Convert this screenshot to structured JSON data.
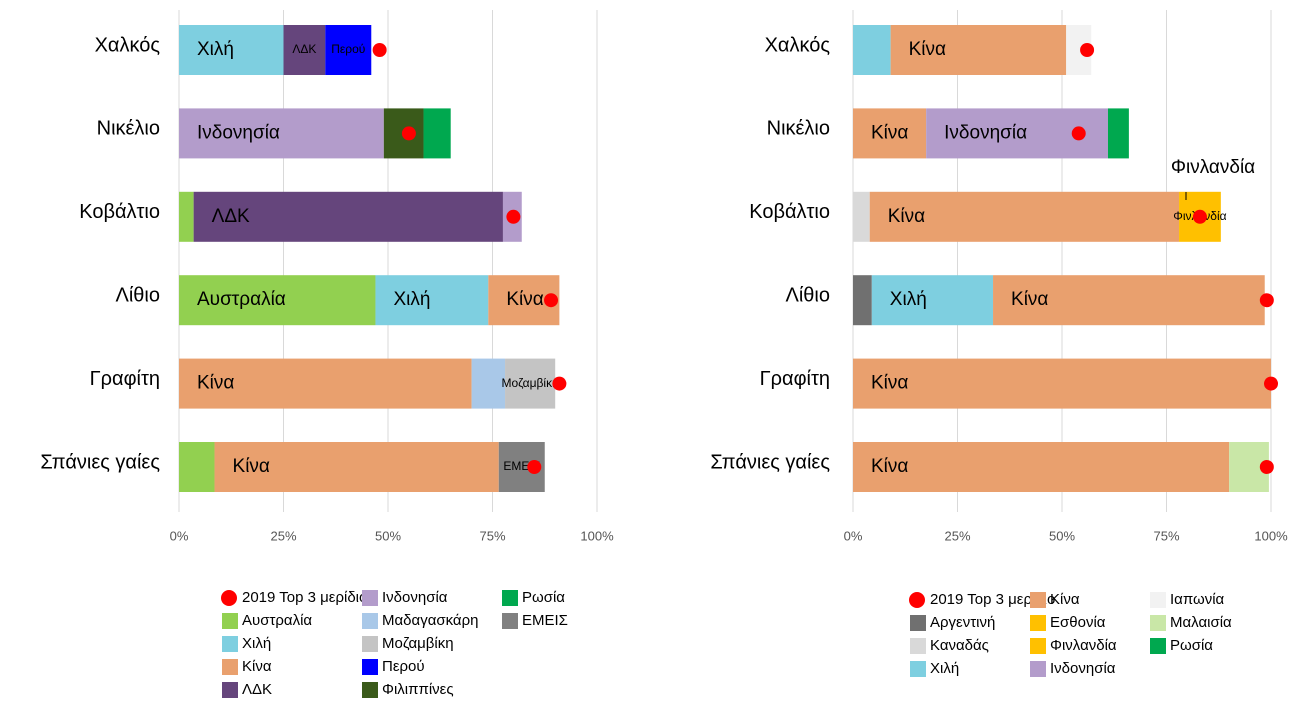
{
  "chart_data": [
    {
      "type": "bar",
      "orientation": "horizontal",
      "stacked": true,
      "categories": [
        "Χαλκός",
        "Νικέλιο",
        "Κοβάλτιο",
        "Λίθιο",
        "Γραφίτη",
        "Σπάνιες γαίες"
      ],
      "xlim": [
        0,
        100
      ],
      "xticks": [
        {
          "value": 0,
          "label": "0%"
        },
        {
          "value": 25,
          "label": "25%"
        },
        {
          "value": 50,
          "label": "50%"
        },
        {
          "value": 75,
          "label": "75%"
        },
        {
          "value": 100,
          "label": "100%"
        }
      ],
      "grid": true,
      "marker_series": {
        "name": "2019 Top 3 μερίδιο",
        "color": "#ff0000",
        "values": [
          48,
          55,
          80,
          89,
          91,
          85
        ]
      },
      "series": [
        {
          "name": "Αυστραλία",
          "color": "#92d050",
          "values": [
            null,
            null,
            3.5,
            47,
            null,
            8.5
          ]
        },
        {
          "name": "Χιλή",
          "color": "#7ecfe0",
          "values": [
            25,
            null,
            null,
            27,
            null,
            null
          ]
        },
        {
          "name": "Κίνα",
          "color": "#e9a06e",
          "values": [
            null,
            null,
            null,
            17,
            70,
            68
          ]
        },
        {
          "name": "ΛΔΚ",
          "color": "#65457c",
          "values": [
            10,
            null,
            74,
            null,
            null,
            null
          ]
        },
        {
          "name": "Ινδονησία",
          "color": "#b39ccb",
          "values": [
            null,
            49,
            4.5,
            null,
            null,
            null
          ]
        },
        {
          "name": "Μαδαγασκάρη",
          "color": "#a9c8e8",
          "values": [
            null,
            null,
            null,
            null,
            8,
            null
          ]
        },
        {
          "name": "Μοζαμβίκη",
          "color": "#c4c4c4",
          "values": [
            null,
            null,
            null,
            null,
            12,
            null
          ]
        },
        {
          "name": "Περού",
          "color": "#0000ff",
          "values": [
            11,
            null,
            null,
            null,
            null,
            null
          ]
        },
        {
          "name": "Φιλιππίνες",
          "color": "#3a5a1a",
          "values": [
            null,
            9.5,
            null,
            null,
            null,
            null
          ]
        },
        {
          "name": "Ρωσία",
          "color": "#00a84f",
          "values": [
            null,
            6.5,
            null,
            null,
            null,
            null
          ]
        },
        {
          "name": "ΕΜΕΙΣ",
          "color": "#808080",
          "values": [
            null,
            null,
            null,
            null,
            null,
            11
          ]
        }
      ]
    },
    {
      "type": "bar",
      "orientation": "horizontal",
      "stacked": true,
      "categories": [
        "Χαλκός",
        "Νικέλιο",
        "Κοβάλτιο",
        "Λίθιο",
        "Γραφίτη",
        "Σπάνιες γαίες"
      ],
      "xlim": [
        0,
        100
      ],
      "xticks": [
        {
          "value": 0,
          "label": "0%"
        },
        {
          "value": 25,
          "label": "25%"
        },
        {
          "value": 50,
          "label": "50%"
        },
        {
          "value": 75,
          "label": "75%"
        },
        {
          "value": 100,
          "label": "100%"
        }
      ],
      "grid": true,
      "annotations": [
        "Φινλανδία"
      ],
      "marker_series": {
        "name": "2019 Top 3 μερίδιο",
        "color": "#ff0000",
        "values": [
          56,
          54,
          83,
          99,
          100,
          99
        ]
      },
      "series": [
        {
          "name": "Αργεντινή",
          "color": "#707070",
          "values": [
            null,
            null,
            null,
            4.5,
            null,
            null
          ]
        },
        {
          "name": "Καναδάς",
          "color": "#d9d9d9",
          "values": [
            null,
            null,
            4,
            null,
            null,
            null
          ]
        },
        {
          "name": "Χιλή",
          "color": "#7ecfe0",
          "values": [
            9,
            null,
            null,
            29,
            null,
            null
          ]
        },
        {
          "name": "Κίνα",
          "color": "#e9a06e",
          "values": [
            42,
            17.5,
            74,
            65,
            100,
            90
          ]
        },
        {
          "name": "Εσθονία",
          "color": "#ffc000",
          "values": [
            null,
            null,
            null,
            null,
            null,
            null
          ]
        },
        {
          "name": "Φινλανδία",
          "color": "#ffc000",
          "values": [
            null,
            null,
            10,
            null,
            null,
            null
          ]
        },
        {
          "name": "Ινδονησία",
          "color": "#b39ccb",
          "values": [
            null,
            43.5,
            null,
            null,
            null,
            null
          ]
        },
        {
          "name": "Ιαπωνία",
          "color": "#f2f2f2",
          "values": [
            6,
            null,
            null,
            null,
            null,
            null
          ]
        },
        {
          "name": "Μαλαισία",
          "color": "#c9e7a7",
          "values": [
            null,
            null,
            null,
            null,
            null,
            9.5
          ]
        },
        {
          "name": "Ρωσία",
          "color": "#00a84f",
          "values": [
            null,
            5,
            null,
            null,
            null,
            null
          ]
        }
      ]
    }
  ]
}
